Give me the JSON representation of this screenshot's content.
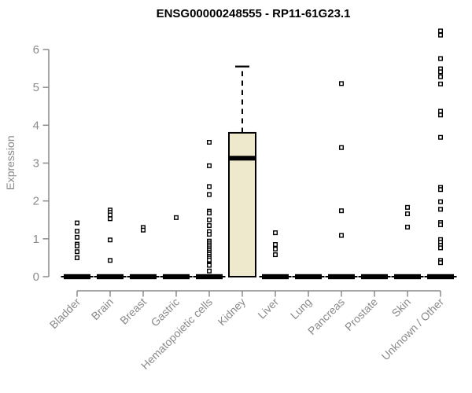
{
  "chart_data": {
    "type": "boxplot",
    "title": "ENSG00000248555 - RP11-61G23.1",
    "ylabel": "Expression",
    "ylim": [
      0,
      6.6
    ],
    "yticks": [
      0,
      1,
      2,
      3,
      4,
      5,
      6
    ],
    "grid": "off",
    "legend": "none",
    "categories": [
      "Bladder",
      "Brain",
      "Breast",
      "Gastric",
      "Hematopoietic cells",
      "Kidney",
      "Liver",
      "Lung",
      "Pancreas",
      "Prostate",
      "Skin",
      "Unknown / Other"
    ],
    "boxes": [
      {
        "category": "Bladder",
        "q1": 0,
        "median": 0,
        "q3": 0,
        "whisker_low": 0,
        "whisker_high": 0,
        "outliers": [
          1.42,
          1.2,
          1.04,
          0.86,
          0.81,
          0.66,
          0.5
        ]
      },
      {
        "category": "Brain",
        "q1": 0,
        "median": 0,
        "q3": 0,
        "whisker_low": 0,
        "whisker_high": 0,
        "outliers": [
          1.76,
          1.7,
          1.63,
          1.53,
          0.97,
          0.43
        ]
      },
      {
        "category": "Breast",
        "q1": 0,
        "median": 0,
        "q3": 0,
        "whisker_low": 0,
        "whisker_high": 0,
        "outliers": [
          1.3,
          1.23
        ]
      },
      {
        "category": "Gastric",
        "q1": 0,
        "median": 0,
        "q3": 0,
        "whisker_low": 0,
        "whisker_high": 0,
        "outliers": [
          1.56
        ]
      },
      {
        "category": "Hematopoietic cells",
        "q1": 0,
        "median": 0,
        "q3": 0,
        "whisker_low": 0,
        "whisker_high": 0,
        "outliers": [
          3.55,
          2.93,
          2.38,
          2.17,
          1.73,
          1.68,
          1.5,
          1.35,
          1.19,
          1.12,
          0.94,
          0.89,
          0.84,
          0.79,
          0.74,
          0.69,
          0.64,
          0.59,
          0.54,
          0.49,
          0.44,
          0.33,
          0.3,
          0.15
        ]
      },
      {
        "category": "Kidney",
        "q1": 0,
        "median": 3.13,
        "q3": 3.8,
        "whisker_low": 0,
        "whisker_high": 5.55,
        "outliers": []
      },
      {
        "category": "Liver",
        "q1": 0,
        "median": 0,
        "q3": 0,
        "whisker_low": 0,
        "whisker_high": 0,
        "outliers": [
          1.16,
          0.85,
          0.73,
          0.58
        ]
      },
      {
        "category": "Lung",
        "q1": 0,
        "median": 0,
        "q3": 0,
        "whisker_low": 0,
        "whisker_high": 0,
        "outliers": []
      },
      {
        "category": "Pancreas",
        "q1": 0,
        "median": 0,
        "q3": 0,
        "whisker_low": 0,
        "whisker_high": 0,
        "outliers": [
          5.1,
          3.41,
          1.74,
          1.09
        ]
      },
      {
        "category": "Prostate",
        "q1": 0,
        "median": 0,
        "q3": 0,
        "whisker_low": 0,
        "whisker_high": 0,
        "outliers": []
      },
      {
        "category": "Skin",
        "q1": 0,
        "median": 0,
        "q3": 0,
        "whisker_low": 0,
        "whisker_high": 0,
        "outliers": [
          1.83,
          1.66,
          1.31
        ]
      },
      {
        "category": "Unknown / Other",
        "q1": 0,
        "median": 0,
        "q3": 0,
        "whisker_low": 0,
        "whisker_high": 0,
        "outliers": [
          6.49,
          6.38,
          5.76,
          5.49,
          5.41,
          5.28,
          5.09,
          4.37,
          4.27,
          3.68,
          2.36,
          2.3,
          1.98,
          1.78,
          1.43,
          1.37,
          0.98,
          0.91,
          0.83,
          0.76,
          0.43,
          0.37
        ]
      }
    ],
    "colors": {
      "background": "#ffffff",
      "box_fill": "#eee8cd",
      "box_border": "#000000",
      "median": "#000000",
      "outlier_stroke": "#000000",
      "outlier_fill": "#ffffff",
      "axis": "#8a8a8a",
      "tick_label": "#8a8a8a",
      "title": "#000000"
    }
  }
}
